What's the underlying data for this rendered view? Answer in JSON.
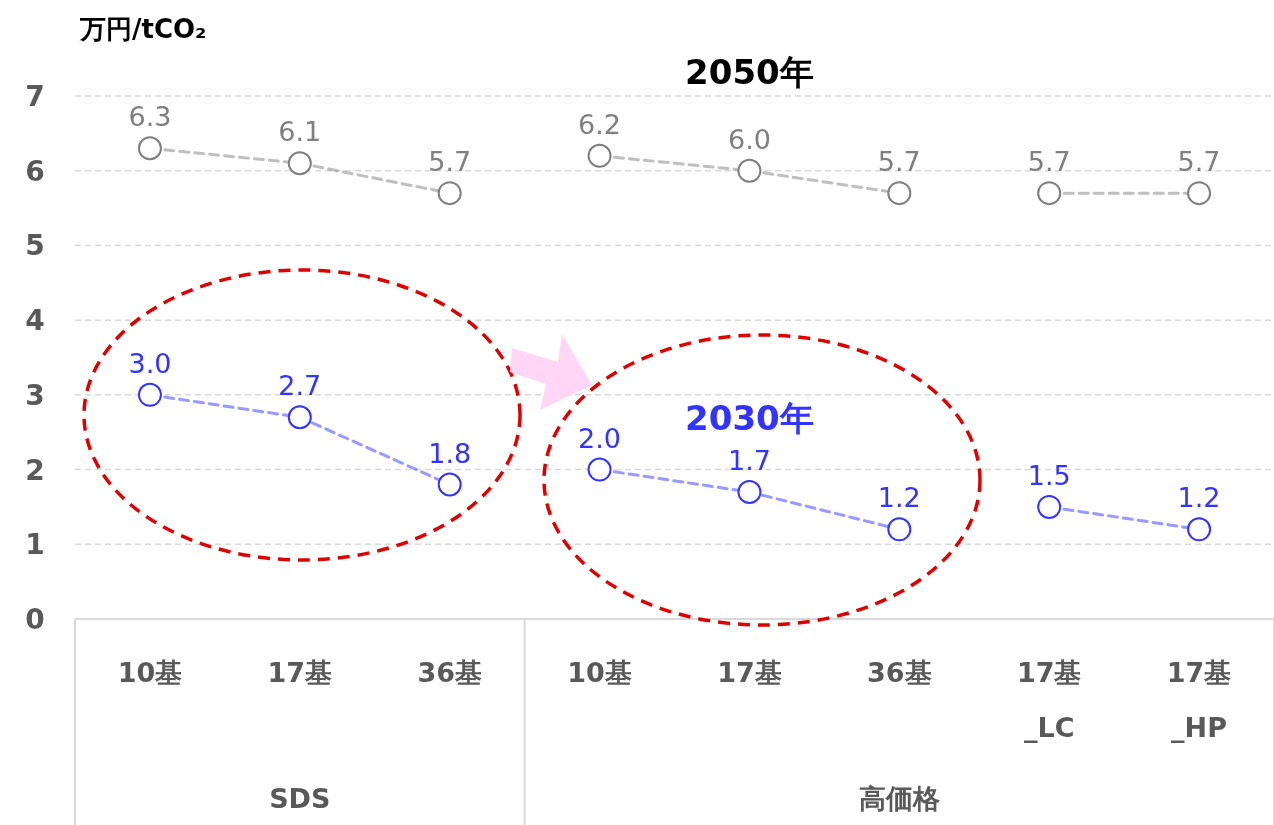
{
  "chart_data": {
    "type": "line",
    "ylabel": "万円/tCO₂",
    "categories": [
      "10基",
      "17基",
      "36基",
      "10基",
      "17基",
      "36基",
      "17基\n_LC",
      "17基\n_HP"
    ],
    "annotations": [
      "SDS",
      "高価格"
    ],
    "ylim": [
      0,
      7
    ],
    "yticks": [
      0,
      1,
      2,
      3,
      4,
      5,
      6,
      7
    ],
    "grid": "y",
    "marker": "circle",
    "line_style": "dashed",
    "series": [
      {
        "color": "#7f7f7f",
        "values": [
          6.3,
          6.1,
          5.7,
          null,
          null,
          null,
          null,
          null
        ],
        "value_labels": [
          "6.3",
          "6.1",
          "5.7",
          null,
          null,
          null,
          null,
          null
        ]
      },
      {
        "name": "2050年",
        "color": "#7f7f7f",
        "values": [
          null,
          null,
          null,
          6.2,
          6.0,
          5.7,
          null,
          null
        ],
        "value_labels": [
          null,
          null,
          null,
          "6.2",
          "6.0",
          "5.7",
          null,
          null
        ]
      },
      {
        "color": "#7f7f7f",
        "values": [
          null,
          null,
          null,
          null,
          null,
          null,
          5.7,
          5.7
        ],
        "value_labels": [
          null,
          null,
          null,
          null,
          null,
          null,
          "5.7",
          "5.7"
        ]
      },
      {
        "color": "#3333ff",
        "values": [
          3.0,
          2.7,
          1.8,
          null,
          null,
          null,
          null,
          null
        ],
        "value_labels": [
          "3.0",
          "2.7",
          "1.8",
          null,
          null,
          null,
          null,
          null
        ]
      },
      {
        "name": "2030年",
        "color": "#3333ff",
        "values": [
          null,
          null,
          null,
          2.0,
          1.7,
          1.2,
          null,
          null
        ],
        "value_labels": [
          null,
          null,
          null,
          "2.0",
          "1.7",
          "1.2",
          null,
          null
        ]
      },
      {
        "color": "#3333ff",
        "values": [
          null,
          null,
          null,
          null,
          null,
          null,
          1.5,
          1.2
        ],
        "value_labels": [
          null,
          null,
          null,
          null,
          null,
          null,
          "1.5",
          "1.2"
        ]
      }
    ]
  }
}
